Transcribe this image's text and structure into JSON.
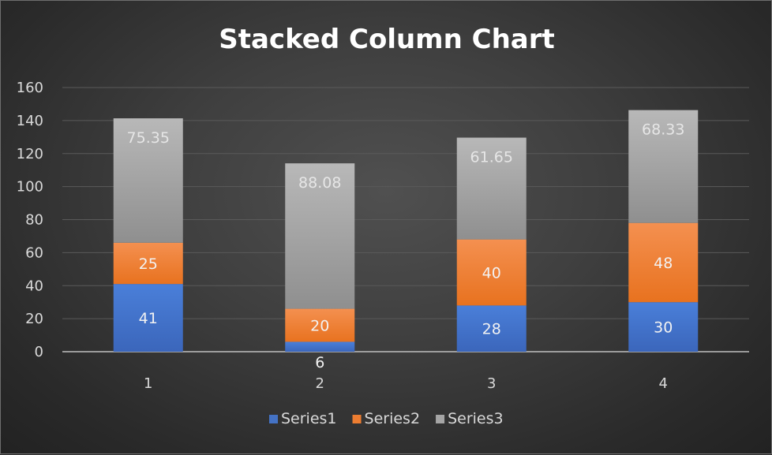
{
  "chart_data": {
    "type": "bar",
    "stacked": true,
    "title": "Stacked Column Chart",
    "xlabel": "",
    "ylabel": "",
    "categories": [
      "1",
      "2",
      "3",
      "4"
    ],
    "ylim": [
      0,
      160
    ],
    "yticks": [
      0,
      20,
      40,
      60,
      80,
      100,
      120,
      140,
      160
    ],
    "grid": true,
    "legend_position": "bottom",
    "series": [
      {
        "name": "Series1",
        "values": [
          41,
          6,
          28,
          30
        ],
        "color": "#4472c4"
      },
      {
        "name": "Series2",
        "values": [
          25,
          20,
          40,
          48
        ],
        "color": "#ed7d31"
      },
      {
        "name": "Series3",
        "values": [
          75.35,
          88.08,
          61.65,
          68.33
        ],
        "color": "#a5a5a5"
      }
    ]
  }
}
